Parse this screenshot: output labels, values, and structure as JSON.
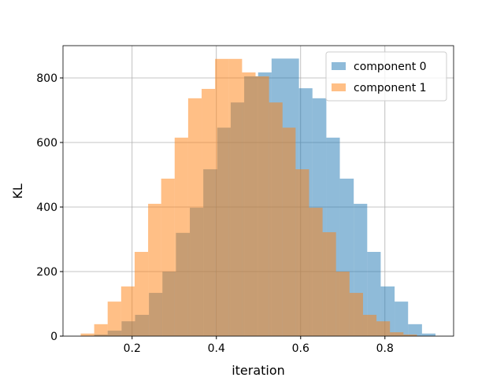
{
  "chart_data": {
    "type": "histogram",
    "xlabel": "iteration",
    "ylabel": "KL",
    "xlim": [
      0.036,
      0.963
    ],
    "ylim": [
      0,
      900
    ],
    "xticks": [
      0.2,
      0.4,
      0.6,
      0.8
    ],
    "yticks": [
      0,
      200,
      400,
      600,
      800
    ],
    "grid": true,
    "legend": "upper right",
    "series": [
      {
        "name": "component 0",
        "color": "#1f77b4",
        "bins": [
          0.11,
          0.142,
          0.175,
          0.207,
          0.24,
          0.272,
          0.304,
          0.337,
          0.369,
          0.402,
          0.434,
          0.466,
          0.499,
          0.531,
          0.564,
          0.596,
          0.628,
          0.661,
          0.693,
          0.726,
          0.758,
          0.79,
          0.823,
          0.855,
          0.888,
          0.92
        ],
        "values": [
          5,
          17,
          46,
          66,
          134,
          200,
          320,
          398,
          517,
          646,
          724,
          805,
          817,
          860,
          860,
          768,
          737,
          615,
          488,
          410,
          261,
          154,
          107,
          37,
          8
        ]
      },
      {
        "name": "component 1",
        "color": "#ff7f0e",
        "bins": [
          0.078,
          0.11,
          0.142,
          0.174,
          0.206,
          0.238,
          0.269,
          0.301,
          0.333,
          0.365,
          0.397,
          0.429,
          0.461,
          0.493,
          0.525,
          0.557,
          0.588,
          0.62,
          0.652,
          0.684,
          0.716,
          0.748,
          0.78,
          0.812,
          0.844,
          0.876
        ],
        "values": [
          8,
          37,
          107,
          154,
          261,
          410,
          488,
          615,
          737,
          766,
          859,
          859,
          817,
          805,
          724,
          646,
          517,
          398,
          322,
          200,
          134,
          66,
          46,
          12,
          5
        ]
      }
    ]
  }
}
